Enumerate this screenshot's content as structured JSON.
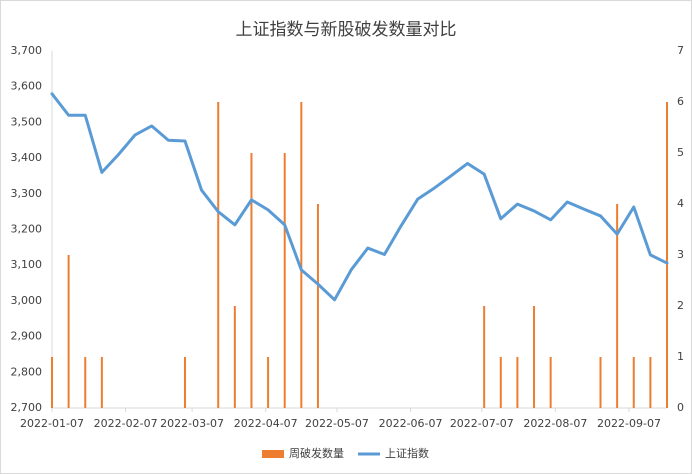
{
  "chart_data": {
    "type": "combo",
    "title": "上证指数与新股破发数量对比",
    "x": [
      "2022-01-07",
      "2022-01-14",
      "2022-01-21",
      "2022-01-28",
      "2022-02-04",
      "2022-02-11",
      "2022-02-18",
      "2022-02-25",
      "2022-03-04",
      "2022-03-11",
      "2022-03-18",
      "2022-03-25",
      "2022-04-01",
      "2022-04-08",
      "2022-04-15",
      "2022-04-22",
      "2022-04-29",
      "2022-05-06",
      "2022-05-13",
      "2022-05-20",
      "2022-05-27",
      "2022-06-03",
      "2022-06-10",
      "2022-06-17",
      "2022-06-24",
      "2022-07-01",
      "2022-07-08",
      "2022-07-15",
      "2022-07-22",
      "2022-07-29",
      "2022-08-05",
      "2022-08-12",
      "2022-08-19",
      "2022-08-26",
      "2022-09-02",
      "2022-09-09",
      "2022-09-16",
      "2022-09-23"
    ],
    "xlim": [
      "2022-01-07",
      "2022-09-23"
    ],
    "xticks": [
      "2022-01-07",
      "2022-02-07",
      "2022-03-07",
      "2022-04-07",
      "2022-05-07",
      "2022-06-07",
      "2022-07-07",
      "2022-08-07",
      "2022-09-07"
    ],
    "series": [
      {
        "name": "周破发数量",
        "type": "bar",
        "axis": "y2",
        "color": "#ed7d31",
        "values": [
          1,
          3,
          1,
          1,
          0,
          0,
          0,
          0,
          1,
          0,
          6,
          2,
          5,
          1,
          5,
          6,
          4,
          0,
          0,
          0,
          0,
          0,
          0,
          0,
          0,
          0,
          2,
          1,
          1,
          2,
          1,
          0,
          0,
          1,
          4,
          1,
          1,
          6
        ]
      },
      {
        "name": "上证指数",
        "type": "line",
        "color": "#5b9bd5",
        "values": [
          3580,
          3520,
          3520,
          3360,
          3410,
          3465,
          3490,
          3450,
          3448,
          3310,
          3250,
          3213,
          3283,
          3255,
          3213,
          3087,
          3047,
          3003,
          3087,
          3148,
          3130,
          3210,
          3285,
          3316,
          3350,
          3385,
          3355,
          3230,
          3271,
          3252,
          3227,
          3277,
          3257,
          3238,
          3187,
          3263,
          3129,
          3106
        ]
      }
    ],
    "ylim": [
      2700,
      3700
    ],
    "yticks": [
      {
        "value": 2700,
        "label": "2,700"
      },
      {
        "value": 2800,
        "label": "2,800"
      },
      {
        "value": 2900,
        "label": "2,900"
      },
      {
        "value": 3000,
        "label": "3,000"
      },
      {
        "value": 3100,
        "label": "3,100"
      },
      {
        "value": 3200,
        "label": "3,200"
      },
      {
        "value": 3300,
        "label": "3,300"
      },
      {
        "value": 3400,
        "label": "3,400"
      },
      {
        "value": 3500,
        "label": "3,500"
      },
      {
        "value": 3600,
        "label": "3,600"
      },
      {
        "value": 3700,
        "label": "3,700"
      }
    ],
    "y2lim": [
      0,
      7
    ],
    "y2ticks": [
      0,
      1,
      2,
      3,
      4,
      5,
      6,
      7
    ],
    "legend": "bottom"
  }
}
